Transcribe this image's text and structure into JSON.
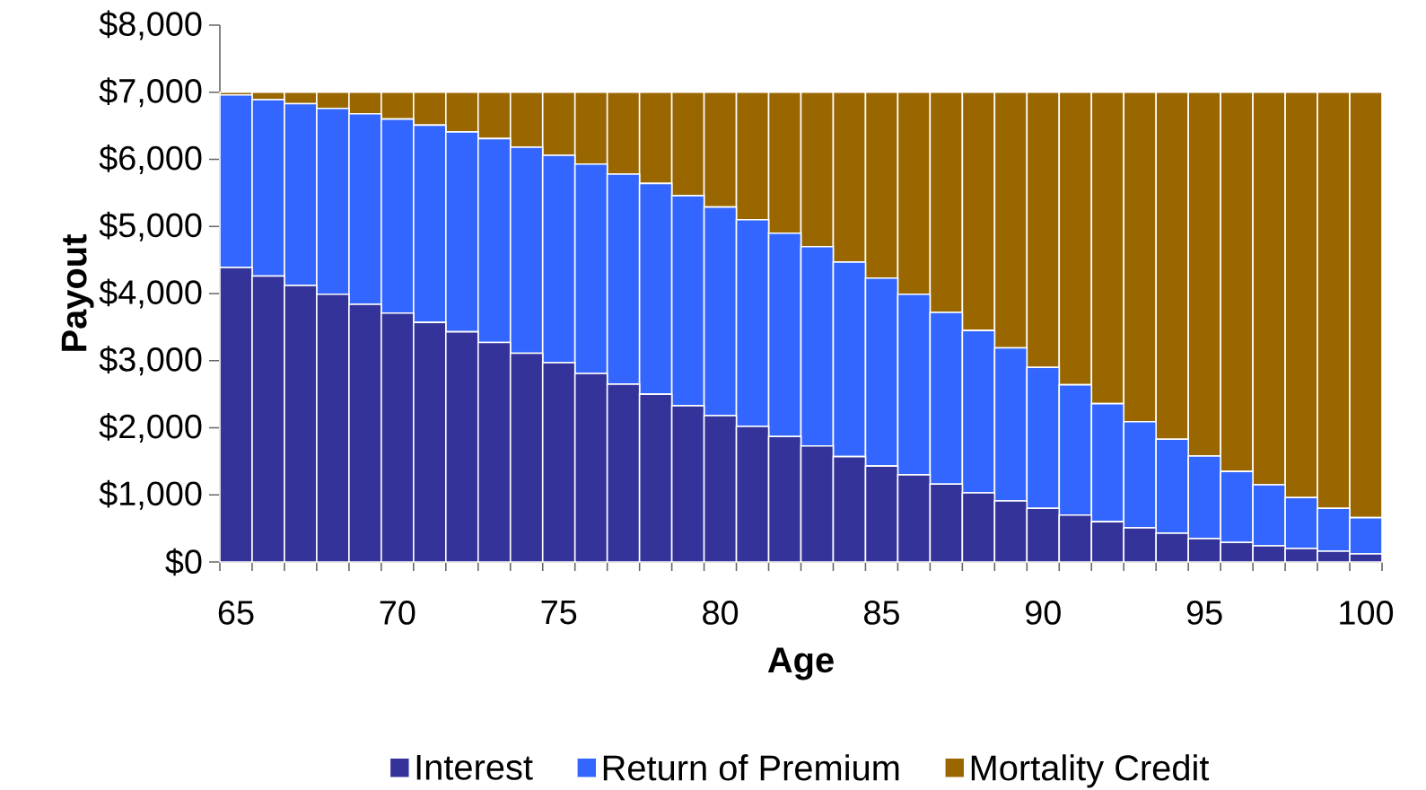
{
  "chart_data": {
    "type": "bar",
    "stacked": true,
    "xlabel": "Age",
    "ylabel": "Payout",
    "legend": "bottom",
    "categories": [
      "65",
      null,
      null,
      null,
      null,
      "70",
      null,
      null,
      null,
      null,
      "75",
      null,
      null,
      null,
      null,
      "80",
      null,
      null,
      null,
      null,
      "85",
      null,
      null,
      null,
      null,
      "90",
      null,
      null,
      null,
      null,
      "95",
      null,
      null,
      null,
      null,
      "100"
    ],
    "ylim": [
      0,
      8000
    ],
    "yticks": [
      {
        "value": 0,
        "label": "$0"
      },
      {
        "value": 1000,
        "label": "$1,000"
      },
      {
        "value": 2000,
        "label": "$2,000"
      },
      {
        "value": 3000,
        "label": "$3,000"
      },
      {
        "value": 4000,
        "label": "$4,000"
      },
      {
        "value": 5000,
        "label": "$5,000"
      },
      {
        "value": 6000,
        "label": "$6,000"
      },
      {
        "value": 7000,
        "label": "$7,000"
      },
      {
        "value": 8000,
        "label": "$8,000"
      }
    ],
    "series": [
      {
        "name": "Interest",
        "color": "#333399",
        "values": [
          4390,
          4260,
          4120,
          3990,
          3840,
          3710,
          3570,
          3430,
          3270,
          3110,
          2970,
          2810,
          2650,
          2500,
          2330,
          2180,
          2020,
          1870,
          1730,
          1570,
          1430,
          1300,
          1160,
          1030,
          910,
          800,
          700,
          600,
          510,
          430,
          350,
          290,
          240,
          200,
          160,
          120
        ]
      },
      {
        "name": "Return of Premium",
        "color": "#3366ff",
        "values": [
          2570,
          2630,
          2710,
          2770,
          2840,
          2890,
          2940,
          2980,
          3040,
          3070,
          3090,
          3120,
          3130,
          3140,
          3130,
          3110,
          3080,
          3030,
          2970,
          2900,
          2800,
          2690,
          2560,
          2420,
          2280,
          2100,
          1940,
          1760,
          1580,
          1400,
          1230,
          1060,
          910,
          760,
          640,
          540
        ]
      },
      {
        "name": "Mortality Credit",
        "color": "#996600",
        "values": [
          40,
          110,
          170,
          240,
          320,
          400,
          490,
          590,
          690,
          820,
          940,
          1070,
          1220,
          1360,
          1540,
          1710,
          1900,
          2100,
          2300,
          2530,
          2770,
          3010,
          3280,
          3550,
          3810,
          4100,
          4360,
          4640,
          4910,
          5170,
          5420,
          5650,
          5850,
          6040,
          6200,
          6340
        ]
      }
    ]
  }
}
